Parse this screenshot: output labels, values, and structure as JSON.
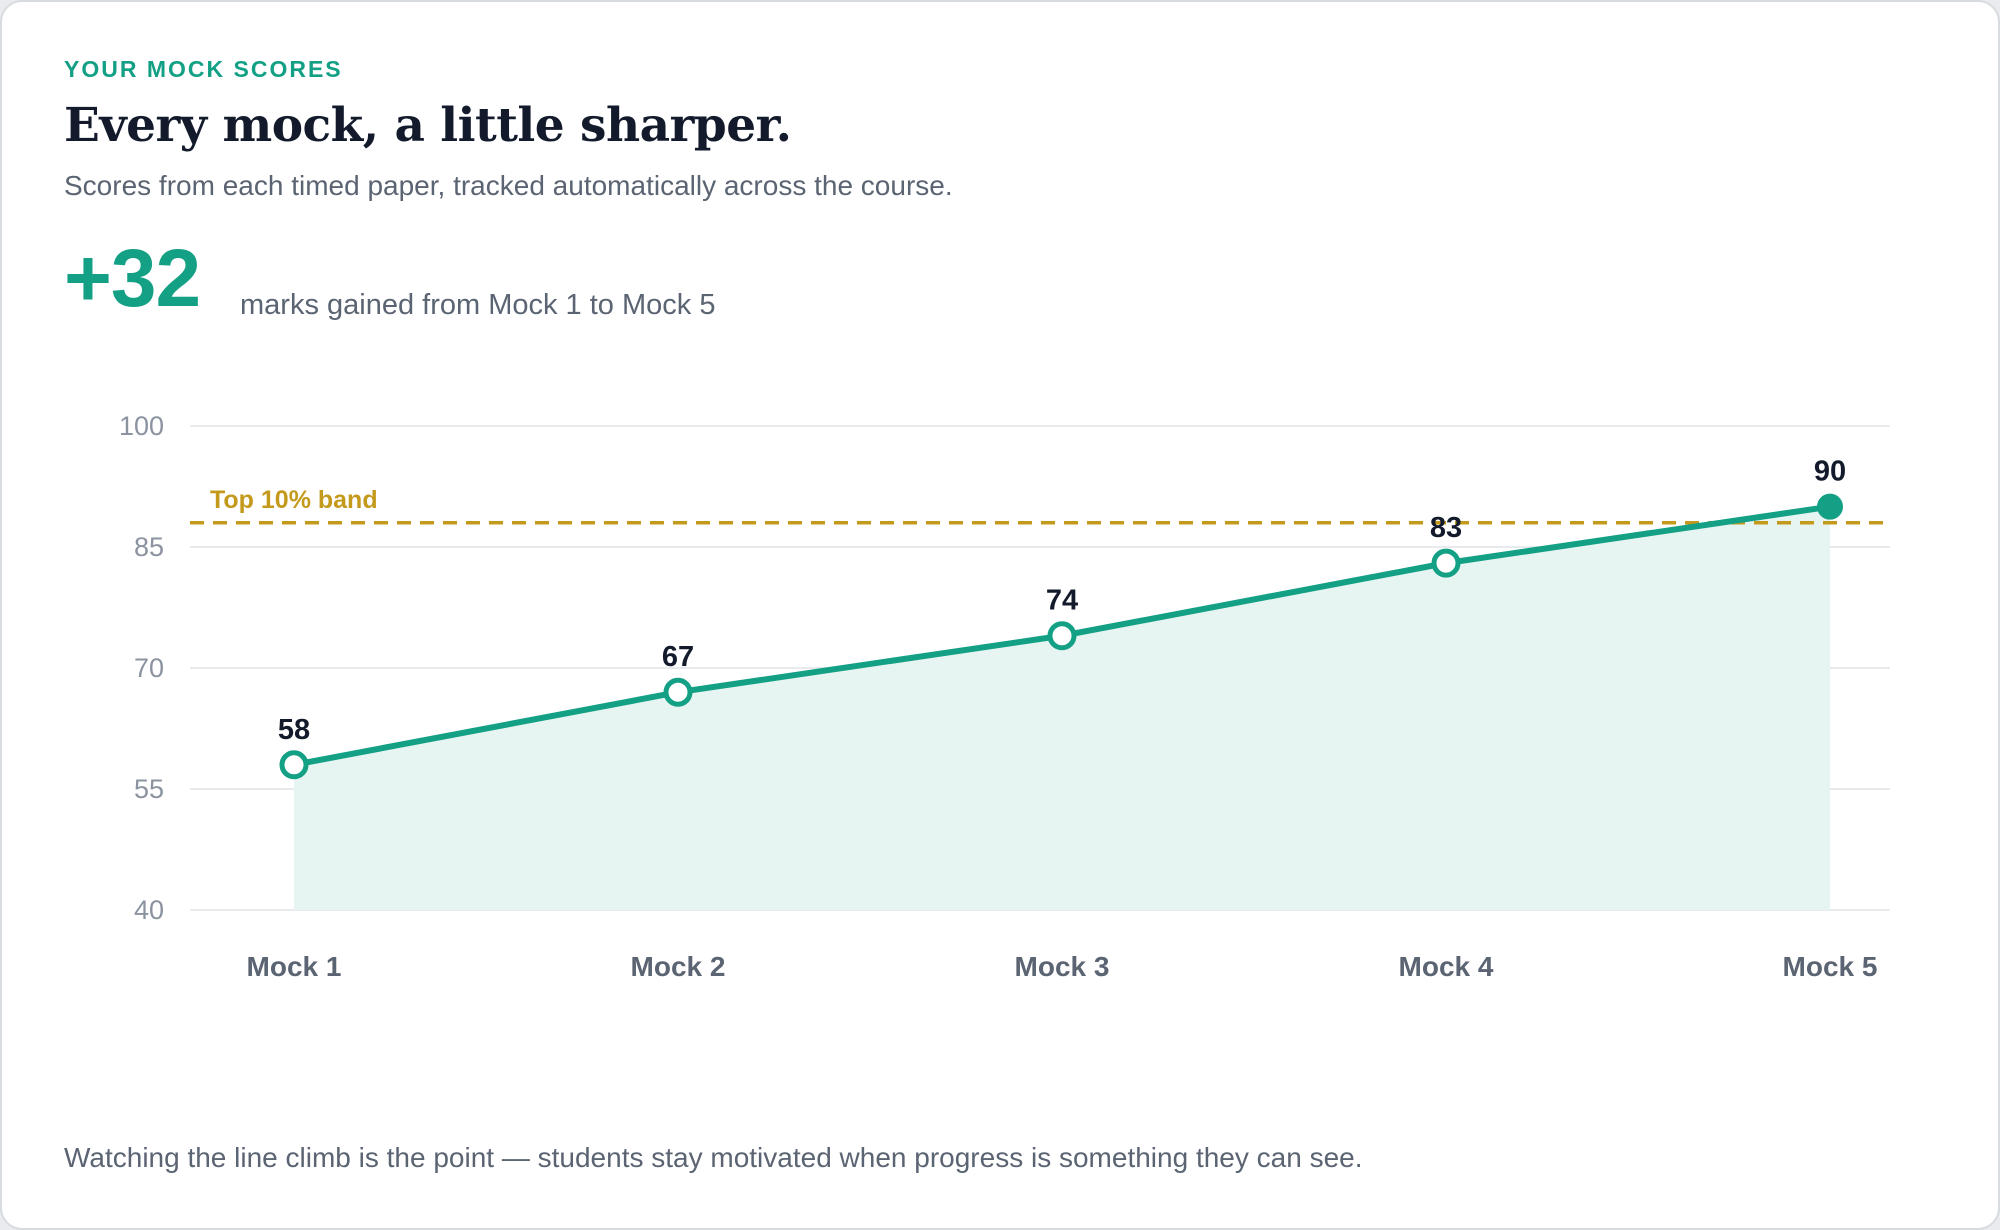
{
  "header": {
    "eyebrow": "YOUR MOCK SCORES",
    "title": "Every mock, a little sharper.",
    "subtitle": "Scores from each timed paper, tracked automatically across the course."
  },
  "summary": {
    "gain_value": "+32",
    "gain_caption": "marks gained from Mock 1 to Mock 5"
  },
  "footer": {
    "note": "Watching the line climb is the point — students stay motivated when progress is something they can see."
  },
  "colors": {
    "accent": "#13a085",
    "area_fill": "#e6f5f1",
    "band": "#c49a1c",
    "grid": "#e8eaee"
  },
  "chart_data": {
    "type": "line",
    "categories": [
      "Mock 1",
      "Mock 2",
      "Mock 3",
      "Mock 4",
      "Mock 5"
    ],
    "series": [
      {
        "values": [
          58,
          67,
          74,
          83,
          90
        ]
      }
    ],
    "data_labels": [
      "58",
      "67",
      "74",
      "83",
      "90"
    ],
    "ylim": [
      40,
      100
    ],
    "yticks": [
      40,
      55,
      70,
      85,
      100
    ],
    "ytick_labels": [
      "40",
      "55",
      "70",
      "85",
      "100"
    ],
    "grid": true,
    "area_fill": true,
    "reference_line": {
      "label": "Top 10% band",
      "value": 88,
      "style": "dashed"
    },
    "title": "",
    "xlabel": "",
    "ylabel": ""
  }
}
